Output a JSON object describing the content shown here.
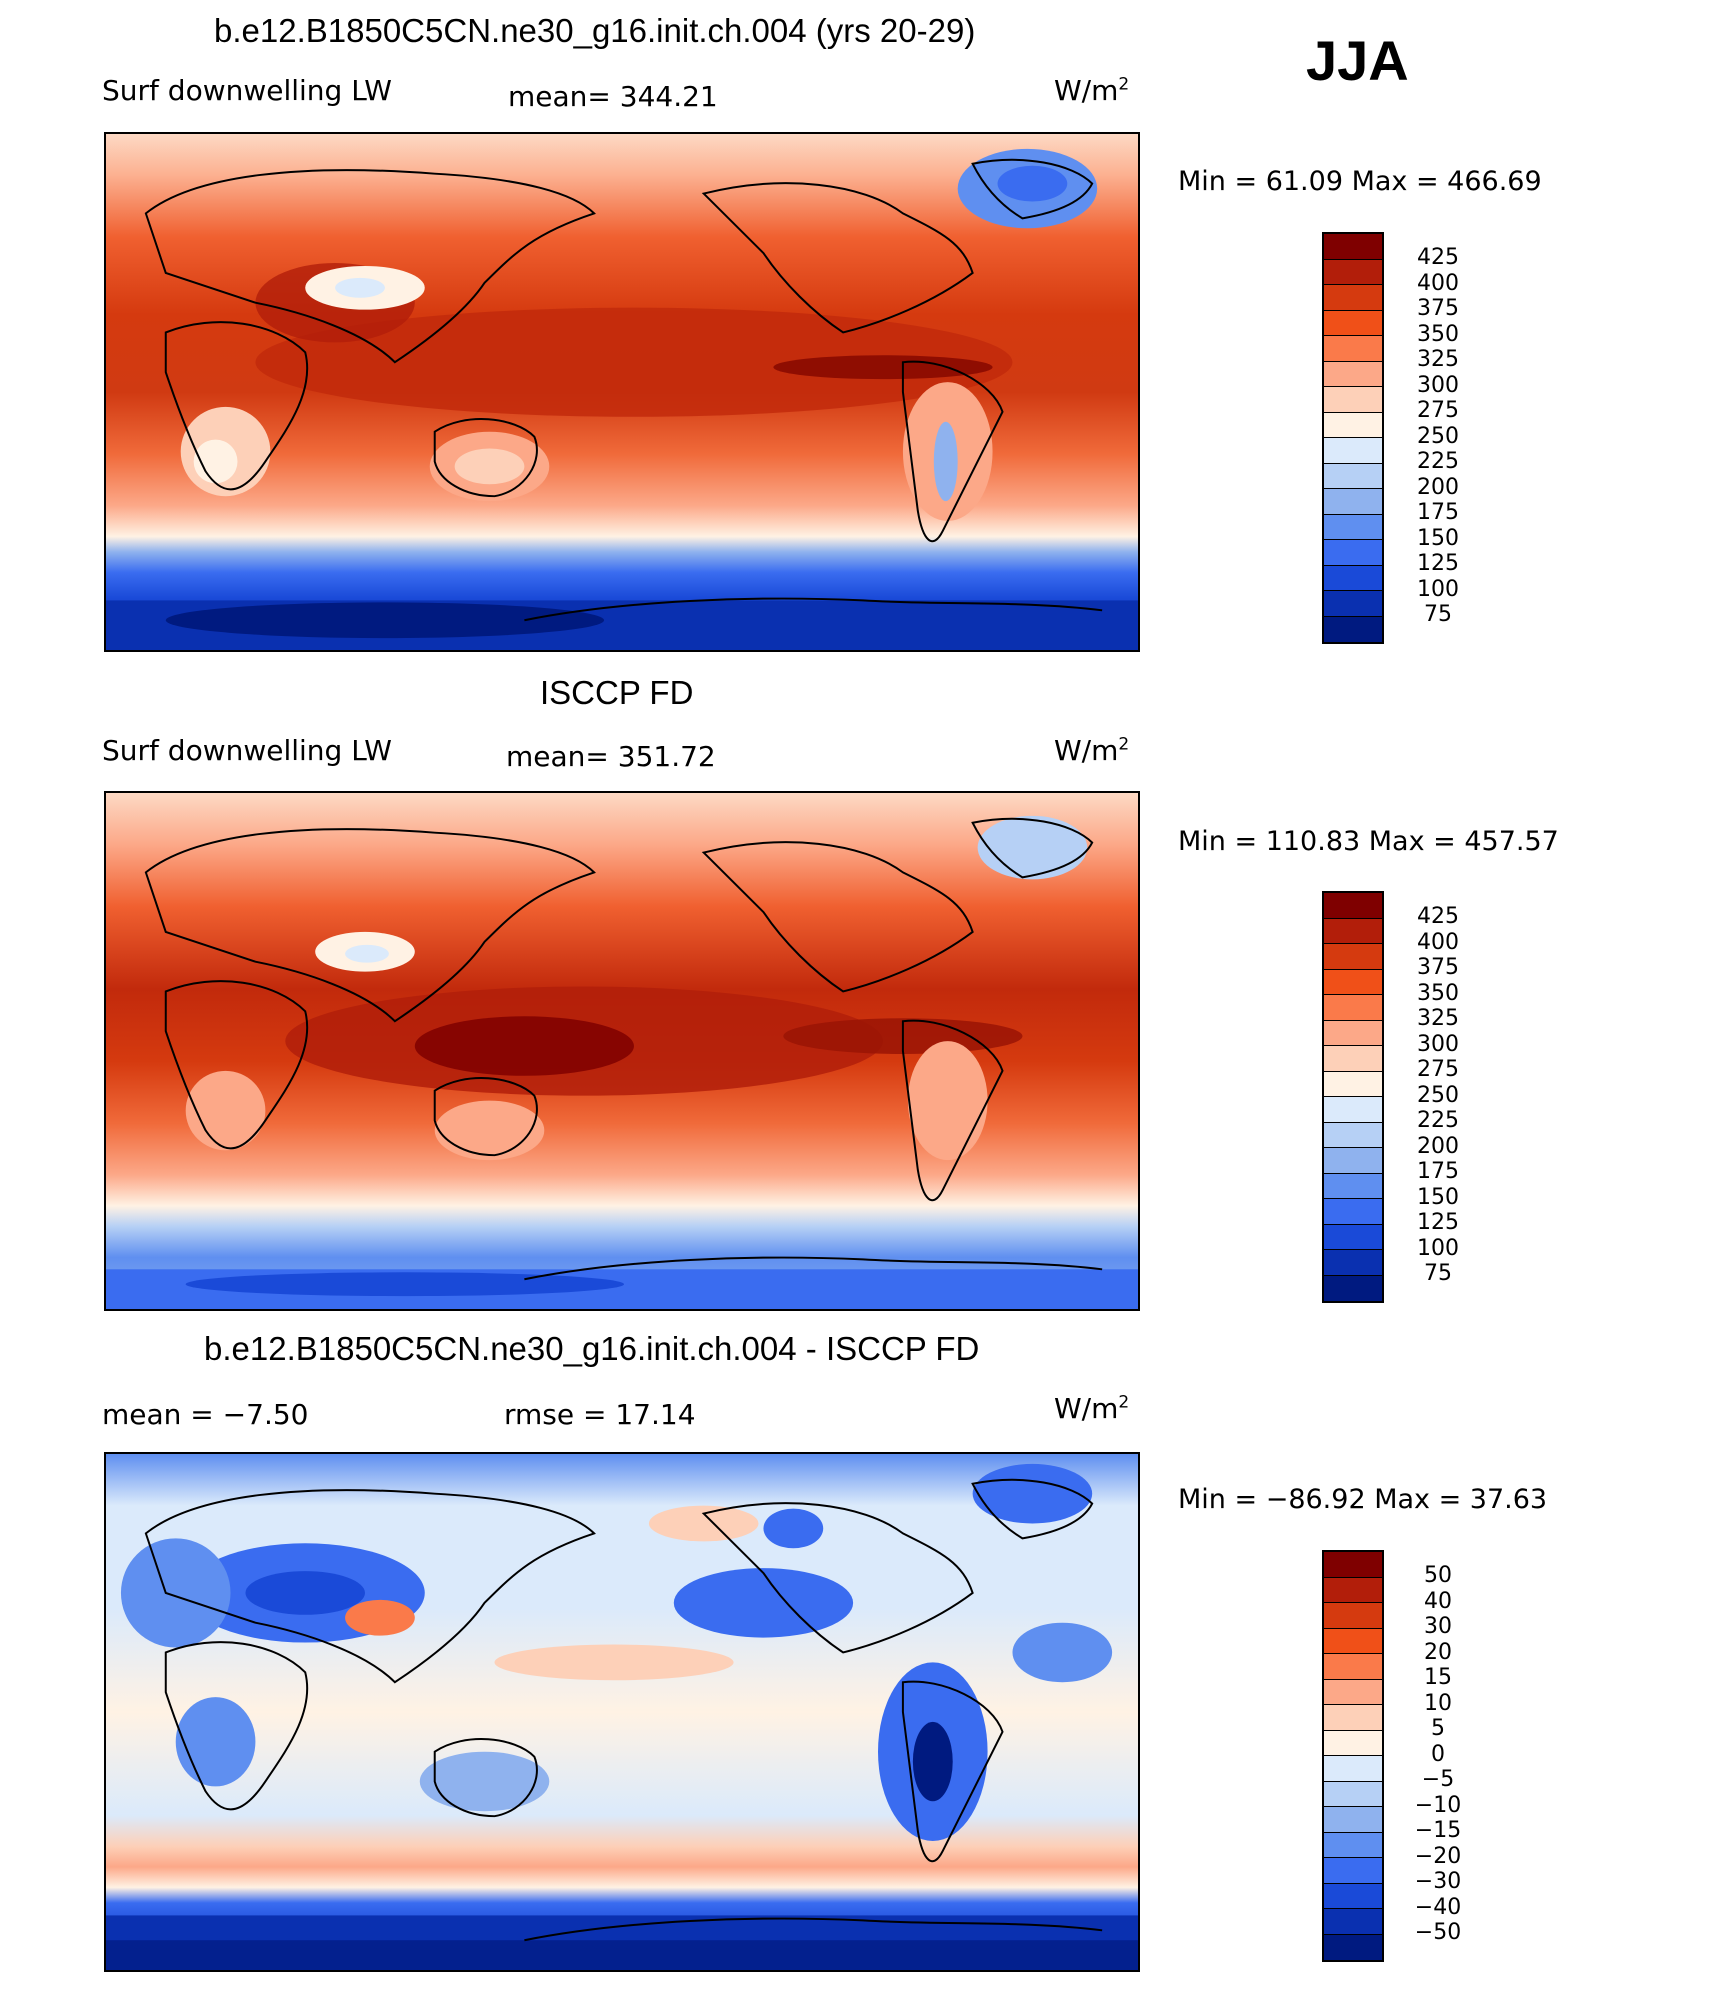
{
  "season": "JJA",
  "panels": [
    {
      "title": "b.e12.B1850C5CN.ne30_g16.init.ch.004 (yrs 20-29)",
      "left_label": "Surf downwelling LW",
      "center_label": "mean= 344.21",
      "units": "W/m",
      "units_sup": "2",
      "minmax": "Min =  61.09 Max = 466.69",
      "colorbar": {
        "ticks": [
          "425",
          "400",
          "375",
          "350",
          "325",
          "300",
          "275",
          "250",
          "225",
          "200",
          "175",
          "150",
          "125",
          "100",
          "75"
        ],
        "colors": [
          "#7f0000",
          "#b21e0a",
          "#d53a0f",
          "#f05018",
          "#fa7a4a",
          "#fca888",
          "#fdd0b8",
          "#fff2e4",
          "#dbeafb",
          "#b6d0f5",
          "#8fb2ee",
          "#5f8ff0",
          "#3a6cf0",
          "#1a4ad8",
          "#0a30b0",
          "#001a80"
        ]
      }
    },
    {
      "title": "ISCCP FD",
      "left_label": "Surf downwelling LW",
      "center_label": "mean= 351.72",
      "units": "W/m",
      "units_sup": "2",
      "minmax": "Min = 110.83 Max = 457.57",
      "colorbar": {
        "ticks": [
          "425",
          "400",
          "375",
          "350",
          "325",
          "300",
          "275",
          "250",
          "225",
          "200",
          "175",
          "150",
          "125",
          "100",
          "75"
        ],
        "colors": [
          "#7f0000",
          "#b21e0a",
          "#d53a0f",
          "#f05018",
          "#fa7a4a",
          "#fca888",
          "#fdd0b8",
          "#fff2e4",
          "#dbeafb",
          "#b6d0f5",
          "#8fb2ee",
          "#5f8ff0",
          "#3a6cf0",
          "#1a4ad8",
          "#0a30b0",
          "#001a80"
        ]
      }
    },
    {
      "title": "b.e12.B1850C5CN.ne30_g16.init.ch.004 - ISCCP FD",
      "left_label": "mean =   −7.50",
      "center_label": "rmse =   17.14",
      "units": "W/m",
      "units_sup": "2",
      "minmax": "Min = −86.92 Max =   37.63",
      "colorbar": {
        "ticks": [
          "50",
          "40",
          "30",
          "20",
          "15",
          "10",
          "5",
          "0",
          "−5",
          "−10",
          "−15",
          "−20",
          "−30",
          "−40",
          "−50"
        ],
        "colors": [
          "#7f0000",
          "#b21e0a",
          "#d53a0f",
          "#f05018",
          "#fa7a4a",
          "#fca888",
          "#fdd0b8",
          "#fff2e4",
          "#dbeafb",
          "#b6d0f5",
          "#8fb2ee",
          "#5f8ff0",
          "#3a6cf0",
          "#1a4ad8",
          "#0a30b0",
          "#001a80"
        ]
      }
    }
  ]
}
